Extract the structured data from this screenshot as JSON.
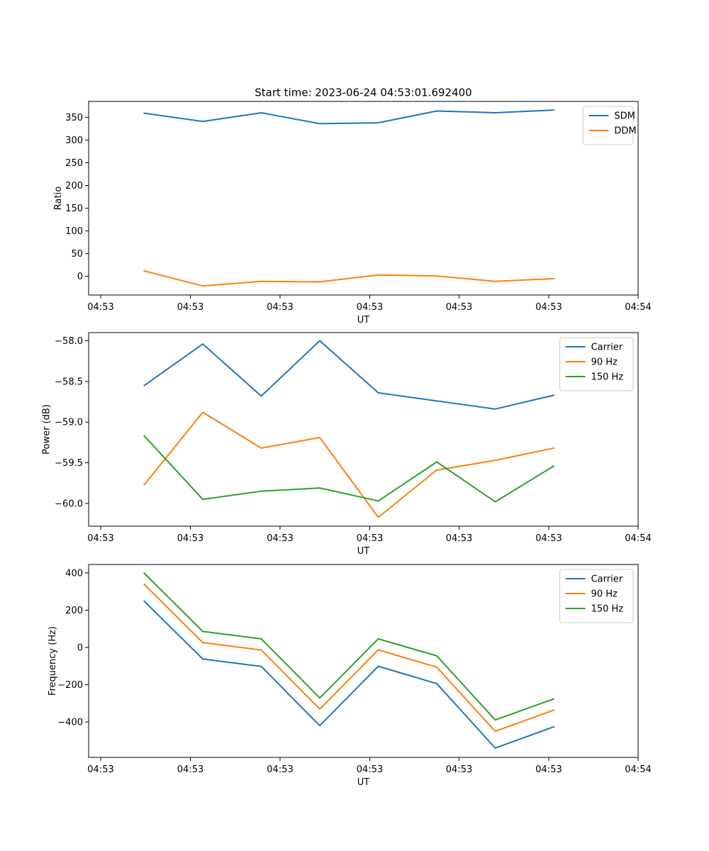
{
  "figure_title": "Start time: 2023-06-24 04:53:01.692400",
  "chart_data": [
    {
      "type": "line",
      "title": "Start time: 2023-06-24 04:53:01.692400",
      "xlabel": "UT",
      "ylabel": "Ratio",
      "x_tick_labels": [
        "04:53",
        "04:53",
        "04:53",
        "04:53",
        "04:53",
        "04:53",
        "04:54"
      ],
      "y_ticks": [
        0,
        50,
        100,
        150,
        200,
        250,
        300,
        350
      ],
      "ylim": [
        -41,
        385
      ],
      "legend_position": "top-right",
      "grid": false,
      "series": [
        {
          "name": "SDM",
          "color": "#1f77b4",
          "values": [
            359,
            341,
            360,
            336,
            338,
            364,
            360,
            366
          ]
        },
        {
          "name": "DDM",
          "color": "#ff7f0e",
          "values": [
            12,
            -21,
            -11,
            -12,
            3,
            1,
            -11,
            -5
          ]
        }
      ]
    },
    {
      "type": "line",
      "xlabel": "UT",
      "ylabel": "Power (dB)",
      "x_tick_labels": [
        "04:53",
        "04:53",
        "04:53",
        "04:53",
        "04:53",
        "04:53",
        "04:54"
      ],
      "y_ticks": [
        -60.0,
        -59.5,
        -59.0,
        -58.5,
        -58.0
      ],
      "ylim": [
        -60.28,
        -57.9
      ],
      "legend_position": "top-right",
      "grid": false,
      "series": [
        {
          "name": "Carrier",
          "color": "#1f77b4",
          "values": [
            -58.55,
            -58.04,
            -58.68,
            -58.0,
            -58.64,
            -58.74,
            -58.84,
            -58.67
          ]
        },
        {
          "name": "90 Hz",
          "color": "#ff7f0e",
          "values": [
            -59.77,
            -58.88,
            -59.32,
            -59.19,
            -60.17,
            -59.59,
            -59.47,
            -59.32
          ]
        },
        {
          "name": "150 Hz",
          "color": "#2ca02c",
          "values": [
            -59.17,
            -59.95,
            -59.85,
            -59.81,
            -59.97,
            -59.49,
            -59.98,
            -59.54
          ]
        }
      ]
    },
    {
      "type": "line",
      "xlabel": "UT",
      "ylabel": "Frequency (Hz)",
      "x_tick_labels": [
        "04:53",
        "04:53",
        "04:53",
        "04:53",
        "04:53",
        "04:53",
        "04:54"
      ],
      "y_ticks": [
        -400,
        -200,
        0,
        200,
        400
      ],
      "ylim": [
        -590,
        445
      ],
      "legend_position": "top-right",
      "grid": false,
      "series": [
        {
          "name": "Carrier",
          "color": "#1f77b4",
          "values": [
            248,
            -62,
            -102,
            -420,
            -101,
            -194,
            -540,
            -426
          ]
        },
        {
          "name": "90 Hz",
          "color": "#ff7f0e",
          "values": [
            338,
            26,
            -14,
            -331,
            -13,
            -106,
            -450,
            -336
          ]
        },
        {
          "name": "150 Hz",
          "color": "#2ca02c",
          "values": [
            398,
            86,
            46,
            -271,
            46,
            -45,
            -389,
            -276
          ]
        }
      ]
    }
  ]
}
